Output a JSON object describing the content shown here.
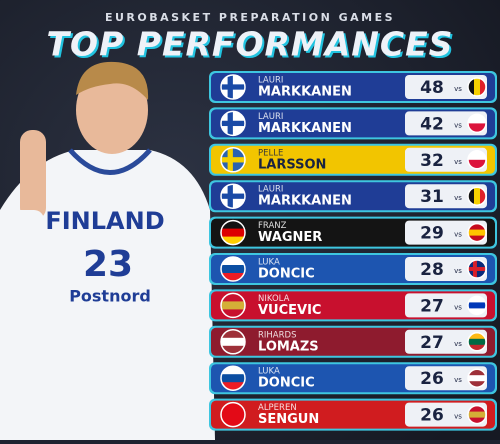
{
  "header": {
    "kicker": "EUROBASKET PREPARATION GAMES",
    "title": "TOP PERFORMANCES"
  },
  "photo": {
    "team": "FINLAND",
    "number": "23",
    "sponsor": "Postnord"
  },
  "rows": [
    {
      "first": "LAURI",
      "last": "MARKKANEN",
      "points": "48",
      "vs": "vs",
      "color": "#1f3d96",
      "text_color": "#ffffff",
      "flag": {
        "cross": [
          "#ffffff",
          "#1a4aa6"
        ]
      },
      "opponent_flag": {
        "vstripes": [
          "#111111",
          "#f5d000",
          "#e0202a"
        ]
      }
    },
    {
      "first": "LAURI",
      "last": "MARKKANEN",
      "points": "42",
      "vs": "vs",
      "color": "#1f3d96",
      "text_color": "#ffffff",
      "flag": {
        "cross": [
          "#ffffff",
          "#1a4aa6"
        ]
      },
      "opponent_flag": {
        "stripes": [
          "#ffffff",
          "#dc143c"
        ]
      }
    },
    {
      "first": "PELLE",
      "last": "LARSSON",
      "points": "32",
      "vs": "vs",
      "color": "#f2c500",
      "text_color": "#1a2340",
      "flag": {
        "cross": [
          "#2a62b0",
          "#f5d000"
        ]
      },
      "opponent_flag": {
        "stripes": [
          "#ffffff",
          "#dc143c"
        ]
      }
    },
    {
      "first": "LAURI",
      "last": "MARKKANEN",
      "points": "31",
      "vs": "vs",
      "color": "#1f3d96",
      "text_color": "#ffffff",
      "flag": {
        "cross": [
          "#ffffff",
          "#1a4aa6"
        ]
      },
      "opponent_flag": {
        "vstripes": [
          "#111111",
          "#f5d000",
          "#e0202a"
        ]
      }
    },
    {
      "first": "FRANZ",
      "last": "WAGNER",
      "points": "29",
      "vs": "vs",
      "color": "#141414",
      "text_color": "#ffffff",
      "flag": {
        "stripes": [
          "#111111",
          "#dd0000",
          "#ffce00"
        ]
      },
      "opponent_flag": {
        "stripes": [
          "#c60b1e",
          "#ffc400",
          "#c60b1e"
        ]
      }
    },
    {
      "first": "LUKA",
      "last": "DONCIC",
      "points": "28",
      "vs": "vs",
      "color": "#1d55b0",
      "text_color": "#ffffff",
      "flag": {
        "stripes": [
          "#ffffff",
          "#0b4ea2",
          "#ed1c24"
        ]
      },
      "opponent_flag": {
        "cross": [
          "#0a2a7a",
          "#d8202a"
        ]
      }
    },
    {
      "first": "NIKOLA",
      "last": "VUCEVIC",
      "points": "27",
      "vs": "vs",
      "color": "#c8102e",
      "text_color": "#ffffff",
      "flag": {
        "stripes": [
          "#c8102e",
          "#d4af37",
          "#c8102e"
        ]
      },
      "opponent_flag": {
        "stripes": [
          "#ffffff",
          "#0038b8",
          "#ffffff"
        ]
      }
    },
    {
      "first": "RIHARDS",
      "last": "LOMAZS",
      "points": "27",
      "vs": "vs",
      "color": "#8e1b2e",
      "text_color": "#ffffff",
      "flag": {
        "stripes": [
          "#9e3039",
          "#ffffff",
          "#9e3039"
        ]
      },
      "opponent_flag": {
        "stripes": [
          "#fdb913",
          "#006a44",
          "#c1272d"
        ]
      }
    },
    {
      "first": "LUKA",
      "last": "DONCIC",
      "points": "26",
      "vs": "vs",
      "color": "#1d55b0",
      "text_color": "#ffffff",
      "flag": {
        "stripes": [
          "#ffffff",
          "#0b4ea2",
          "#ed1c24"
        ]
      },
      "opponent_flag": {
        "stripes": [
          "#9e3039",
          "#ffffff",
          "#9e3039"
        ]
      }
    },
    {
      "first": "ALPEREN",
      "last": "SENGUN",
      "points": "26",
      "vs": "vs",
      "color": "#d01c1f",
      "text_color": "#ffffff",
      "flag": {
        "stripes": [
          "#e30a17"
        ]
      },
      "opponent_flag": {
        "stripes": [
          "#c8102e",
          "#d4af37",
          "#c8102e"
        ]
      }
    }
  ]
}
